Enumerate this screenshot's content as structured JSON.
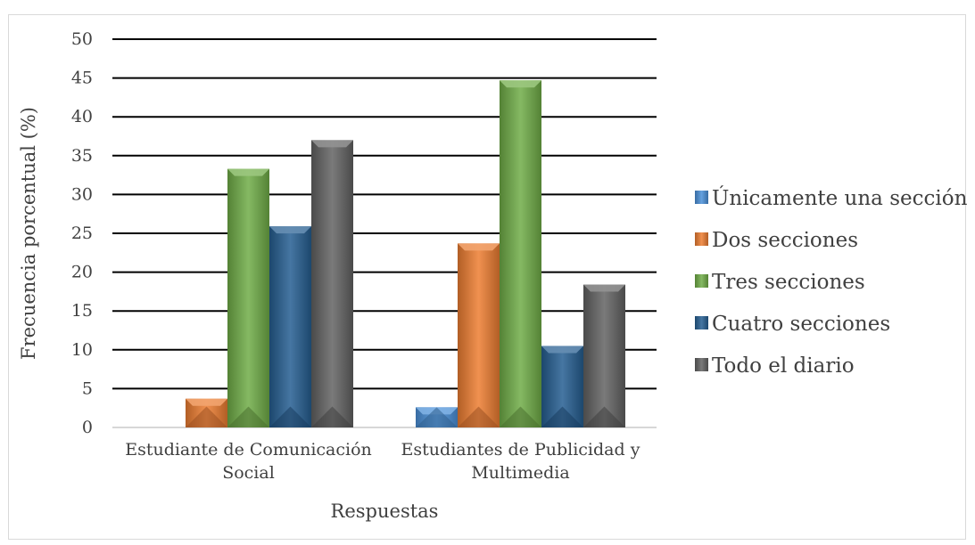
{
  "chart_data": {
    "type": "bar",
    "title": "",
    "xlabel": "Respuestas",
    "ylabel": "Frecuencia porcentual (%)",
    "ylim": [
      0,
      50
    ],
    "yticks": [
      "0",
      "5",
      "10",
      "15",
      "20",
      "25",
      "30",
      "35",
      "40",
      "45",
      "50"
    ],
    "categories": [
      [
        "Estudiante de Comunicación",
        "Social"
      ],
      [
        "Estudiantes de Publicidad  y",
        "Multimedia"
      ]
    ],
    "grid": true,
    "legend_position": "right",
    "series": [
      {
        "name": "Únicamente una sección",
        "color": "#4a90d9",
        "values": [
          0,
          2.6
        ]
      },
      {
        "name": "Dos secciones",
        "color": "#ed7d31",
        "values": [
          3.7,
          23.7
        ]
      },
      {
        "name": "Tres secciones",
        "color": "#70ad47",
        "values": [
          33.3,
          44.7
        ]
      },
      {
        "name": "Cuatro secciones",
        "color": "#255e91",
        "values": [
          25.9,
          10.5
        ]
      },
      {
        "name": "Todo el diario",
        "color": "#636363",
        "values": [
          37.0,
          18.4
        ]
      }
    ]
  }
}
